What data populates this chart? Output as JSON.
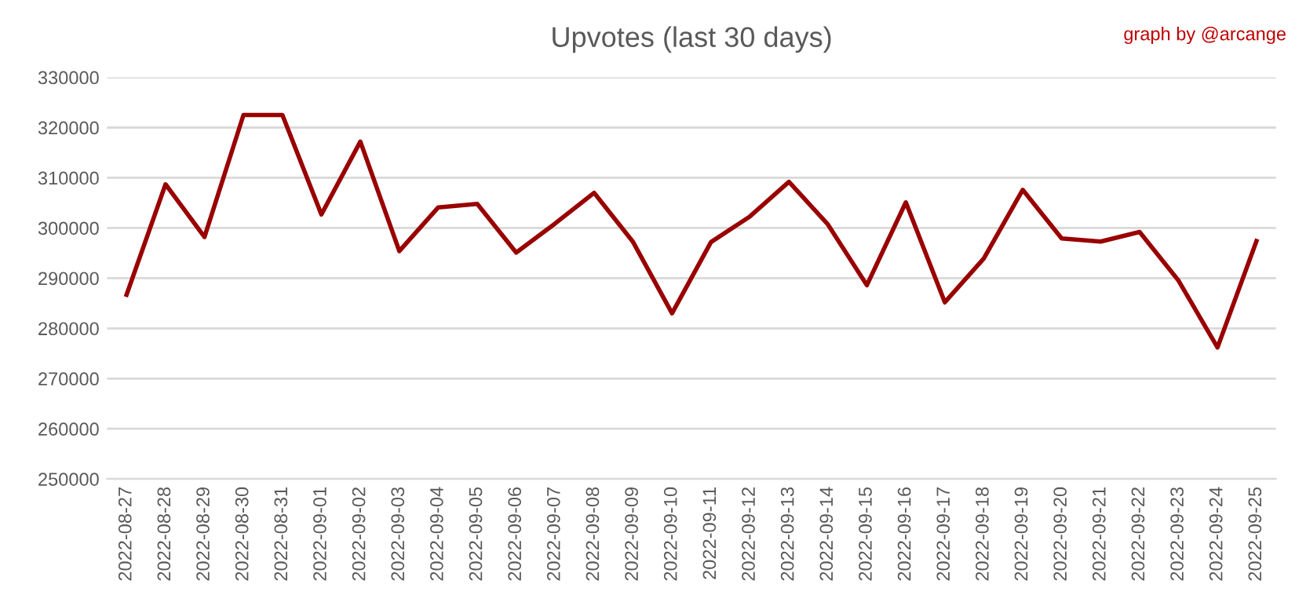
{
  "chart_data": {
    "type": "line",
    "title": "Upvotes (last 30 days)",
    "annotations": [
      "graph by @arcange"
    ],
    "categories": [
      "2022-08-27",
      "2022-08-28",
      "2022-08-29",
      "2022-08-30",
      "2022-08-31",
      "2022-09-01",
      "2022-09-02",
      "2022-09-03",
      "2022-09-04",
      "2022-09-05",
      "2022-09-06",
      "2022-09-07",
      "2022-09-08",
      "2022-09-09",
      "2022-09-10",
      "2022-09-11",
      "2022-09-12",
      "2022-09-13",
      "2022-09-14",
      "2022-09-15",
      "2022-09-16",
      "2022-09-17",
      "2022-09-18",
      "2022-09-19",
      "2022-09-20",
      "2022-09-21",
      "2022-09-22",
      "2022-09-23",
      "2022-09-24",
      "2022-09-25"
    ],
    "series": [
      {
        "color": "#990000",
        "values": [
          286700,
          308700,
          298200,
          322500,
          322500,
          302700,
          317200,
          295400,
          304100,
          304800,
          295100,
          300900,
          307000,
          297200,
          283000,
          297200,
          302300,
          309200,
          300700,
          288600,
          305100,
          285200,
          293900,
          307600,
          297900,
          297300,
          299200,
          289500,
          276200,
          297400
        ]
      }
    ],
    "ylim": [
      250000,
      330000
    ],
    "yticks": [
      250000,
      260000,
      270000,
      280000,
      290000,
      300000,
      310000,
      320000,
      330000
    ],
    "grid": "y",
    "legend": false,
    "marker": "none",
    "line_style": "solid"
  }
}
